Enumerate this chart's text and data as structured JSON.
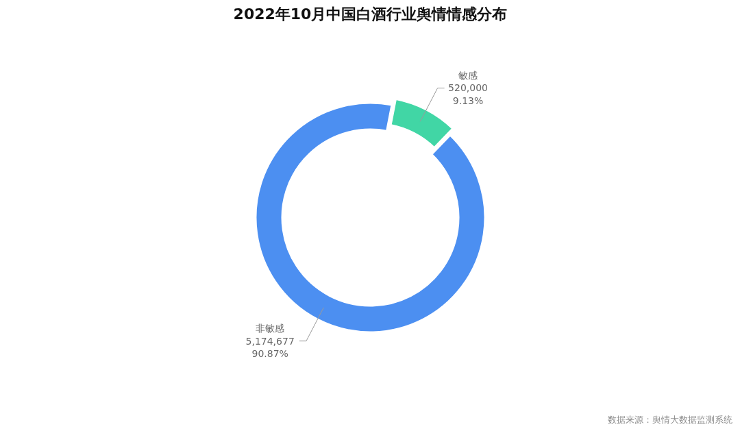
{
  "chart_data": {
    "type": "donut",
    "title": "2022年10月中国白酒行业舆情情感分布",
    "categories": [
      "敏感",
      "非敏感"
    ],
    "values": [
      520000,
      5174677
    ],
    "colors": [
      "#41d6a5",
      "#4c8ff1"
    ],
    "value_labels": [
      "520,000\n9.13%",
      "5,174,677\n90.87%"
    ],
    "annotations": [
      "数据来源：舆情大数据监测系统"
    ]
  }
}
